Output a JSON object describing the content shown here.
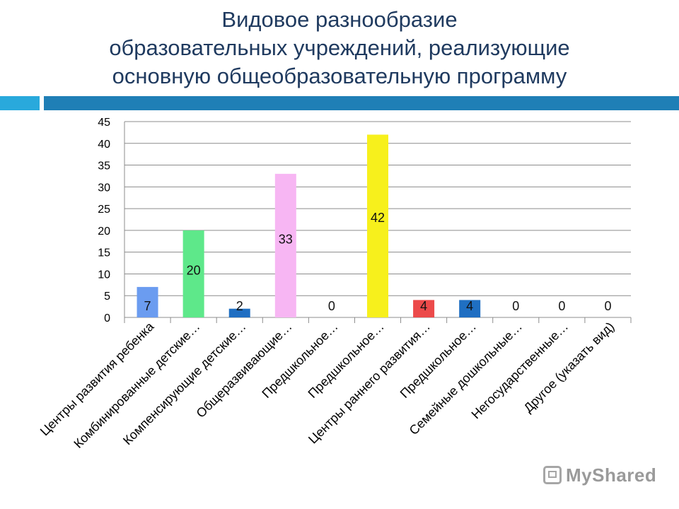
{
  "title_lines": [
    "Видовое разнообразие",
    "образовательных учреждений, реализующие",
    "основную общеобразовательную программу"
  ],
  "watermark": "MyShared",
  "chart_data": {
    "type": "bar",
    "title": "",
    "xlabel": "",
    "ylabel": "",
    "ylim": [
      0,
      45
    ],
    "yticks": [
      0,
      5,
      10,
      15,
      20,
      25,
      30,
      35,
      40,
      45
    ],
    "grid": true,
    "legend": "none",
    "categories": [
      "Центры развития ребенка",
      "Комбинированные детские…",
      "Компенсирующие детские…",
      "Общеразвивающие…",
      "Предшкольное…",
      "Предшкольное…",
      "Центры раннего развития…",
      "Предшкольное…",
      "Семейные дошкольные…",
      "Негосударственные…",
      "Другое (указать вид)"
    ],
    "values": [
      7,
      20,
      2,
      33,
      0,
      42,
      4,
      4,
      0,
      0,
      0
    ],
    "data_labels": [
      "7",
      "20",
      "2",
      "33",
      "0",
      "42",
      "4",
      "4",
      "0",
      "0",
      "0"
    ],
    "colors": [
      "#6b9cf0",
      "#5ee88a",
      "#1f6fc2",
      "#f7b6f3",
      "#cccccc",
      "#f7f01c",
      "#ec4a4a",
      "#1f6fc2",
      "#cccccc",
      "#cccccc",
      "#cccccc"
    ]
  }
}
